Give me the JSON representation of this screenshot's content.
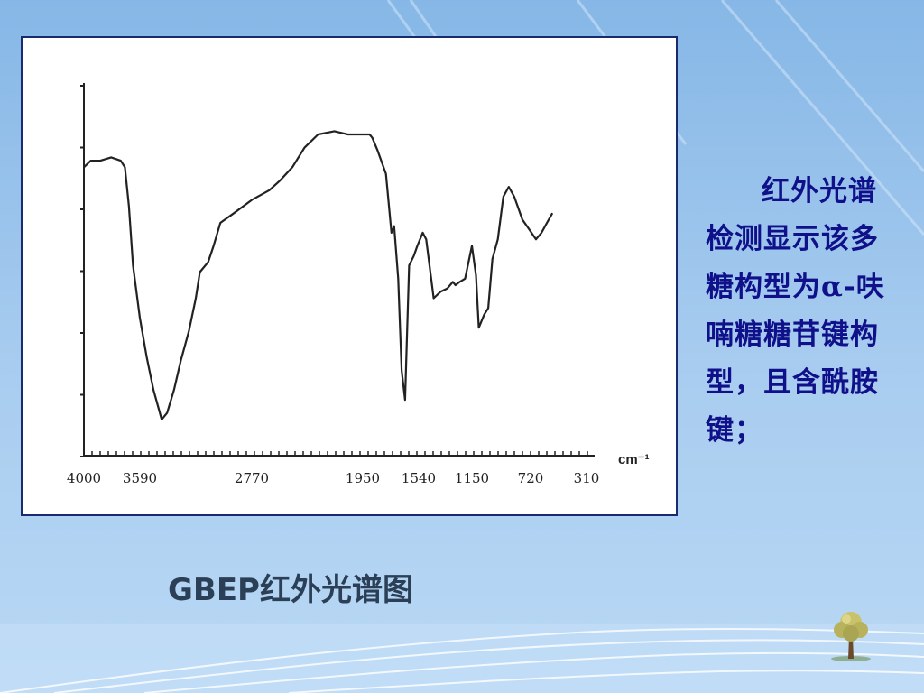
{
  "caption": "GBEP红外光谱图",
  "description": "红外光谱检测显示该多糖构型为α-呋喃糖糖苷键构型，且含酰胺键；",
  "chart_data": {
    "type": "line",
    "title": "",
    "xlabel": "cm⁻¹",
    "ylabel": "",
    "xlim": [
      4000,
      310
    ],
    "x_ticks": [
      "4000",
      "3590",
      "2770",
      "1950",
      "1540",
      "1150",
      "720",
      "310"
    ],
    "series": [
      {
        "name": "",
        "x": [
          4000,
          3950,
          3880,
          3800,
          3730,
          3700,
          3670,
          3640,
          3590,
          3540,
          3490,
          3430,
          3390,
          3340,
          3290,
          3230,
          3180,
          3150,
          3090,
          3050,
          3000,
          2900,
          2770,
          2640,
          2560,
          2470,
          2380,
          2280,
          2160,
          2060,
          2000,
          1990,
          1960,
          1930,
          1900,
          1880,
          1840,
          1780,
          1740,
          1720,
          1690,
          1665,
          1640,
          1610,
          1575,
          1550,
          1510,
          1485,
          1430,
          1380,
          1330,
          1290,
          1270,
          1240,
          1200,
          1175,
          1150,
          1120,
          1100,
          1060,
          1030,
          1000,
          960,
          920,
          880,
          840,
          780,
          730,
          680,
          640,
          600,
          560
        ],
        "values": [
          82,
          84,
          84,
          85,
          84,
          82,
          70,
          52,
          36,
          24,
          14,
          5,
          7,
          14,
          23,
          32,
          42,
          50,
          53,
          58,
          65,
          68,
          72,
          75,
          78,
          82,
          88,
          92,
          93,
          92,
          92,
          92,
          92,
          92,
          92,
          91,
          87,
          80,
          62,
          64,
          48,
          20,
          11,
          52,
          55,
          58,
          62,
          60,
          42,
          44,
          45,
          47,
          46,
          47,
          48,
          53,
          58,
          49,
          33,
          37,
          39,
          54,
          60,
          73,
          76,
          73,
          66,
          63,
          60,
          62,
          65,
          68
        ]
      }
    ]
  },
  "colors": {
    "chart_frame_border": "#1a2a6e",
    "curve": "#222222",
    "caption_text": "#2b3f57",
    "description_text": "#10108a"
  },
  "icons": {
    "logo": "tree-icon"
  }
}
